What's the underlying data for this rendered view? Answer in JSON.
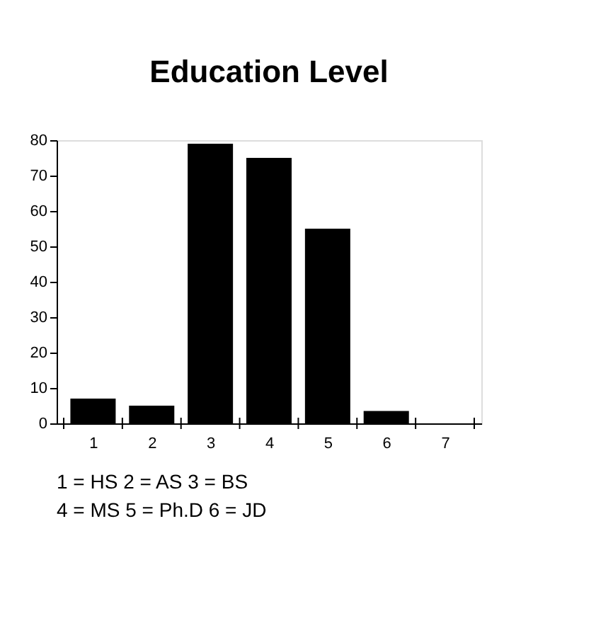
{
  "chart_data": {
    "type": "bar",
    "title": "Education Level",
    "categories": [
      "1",
      "2",
      "3",
      "4",
      "5",
      "6",
      "7"
    ],
    "values": [
      7,
      5,
      79,
      75,
      55,
      3.5,
      0
    ],
    "color": "#000000",
    "ylim": [
      0,
      80
    ],
    "yticks": [
      0,
      10,
      20,
      30,
      40,
      50,
      60,
      70,
      80
    ],
    "grid": false,
    "annotations": [
      "1 = HS  2 = AS 3 = BS",
      "4 = MS 5 = Ph.D 6 = JD"
    ]
  }
}
